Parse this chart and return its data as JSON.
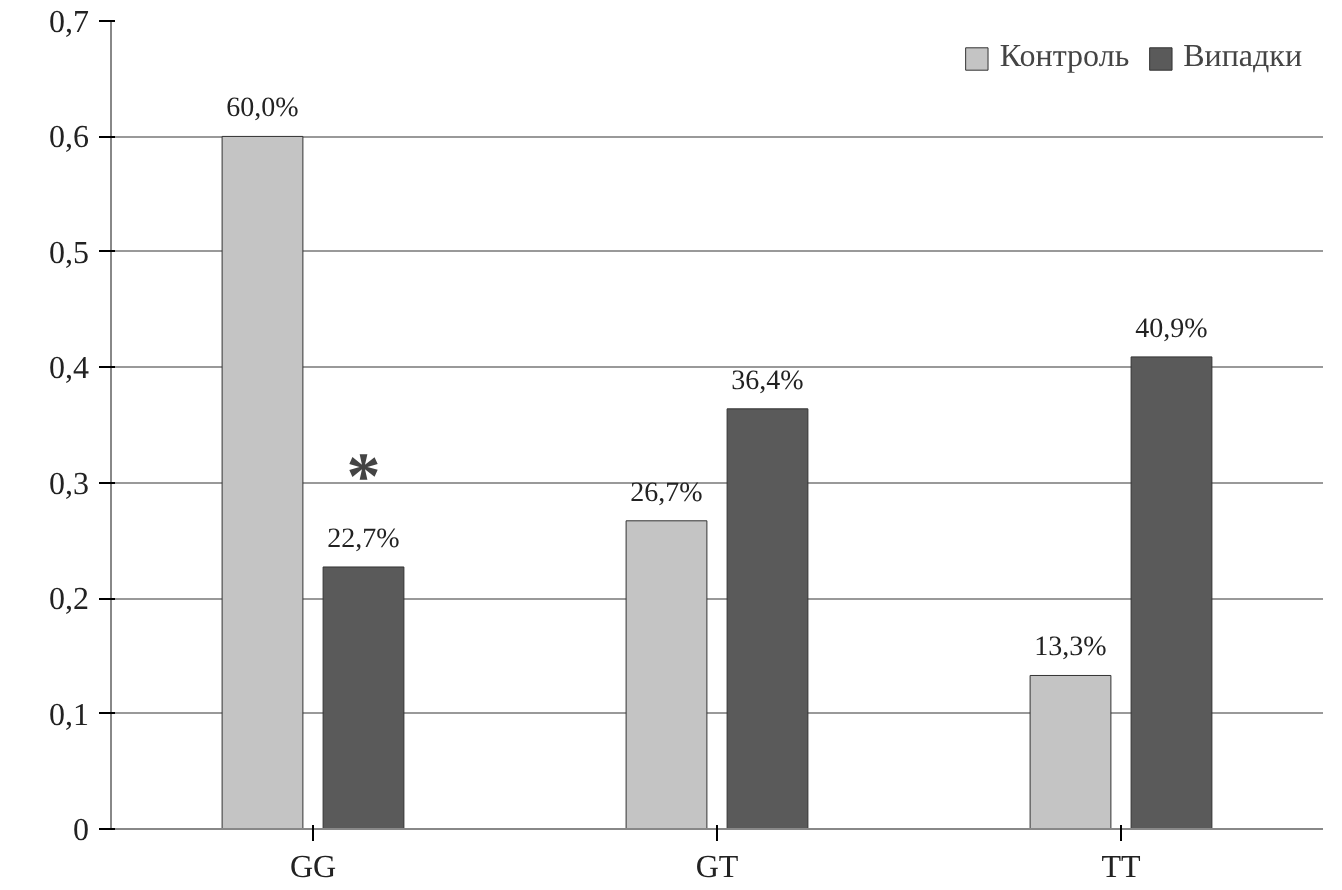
{
  "chart_data": {
    "type": "bar",
    "categories": [
      "GG",
      "GT",
      "TT"
    ],
    "series": [
      {
        "name": "Контроль",
        "color": "#c4c4c4",
        "values": [
          0.6,
          0.267,
          0.133
        ],
        "value_labels": [
          "60,0%",
          "26,7%",
          "13,3%"
        ]
      },
      {
        "name": "Випадки",
        "color": "#5a5a5a",
        "values": [
          0.227,
          0.364,
          0.409
        ],
        "value_labels": [
          "22,7%",
          "36,4%",
          "40,9%"
        ]
      }
    ],
    "ylim": [
      0,
      0.7
    ],
    "yticks": [
      0,
      {
        "value": 0.1,
        "label": "0,1"
      },
      {
        "value": 0.2,
        "label": "0,2"
      },
      {
        "value": 0.3,
        "label": "0,3"
      },
      {
        "value": 0.4,
        "label": "0,4"
      },
      {
        "value": 0.5,
        "label": "0,5"
      },
      {
        "value": 0.6,
        "label": "0,6"
      },
      {
        "value": 0.7,
        "label": "0,7"
      }
    ],
    "annotations": [
      "*"
    ],
    "grid": "y",
    "legend": "top right"
  }
}
